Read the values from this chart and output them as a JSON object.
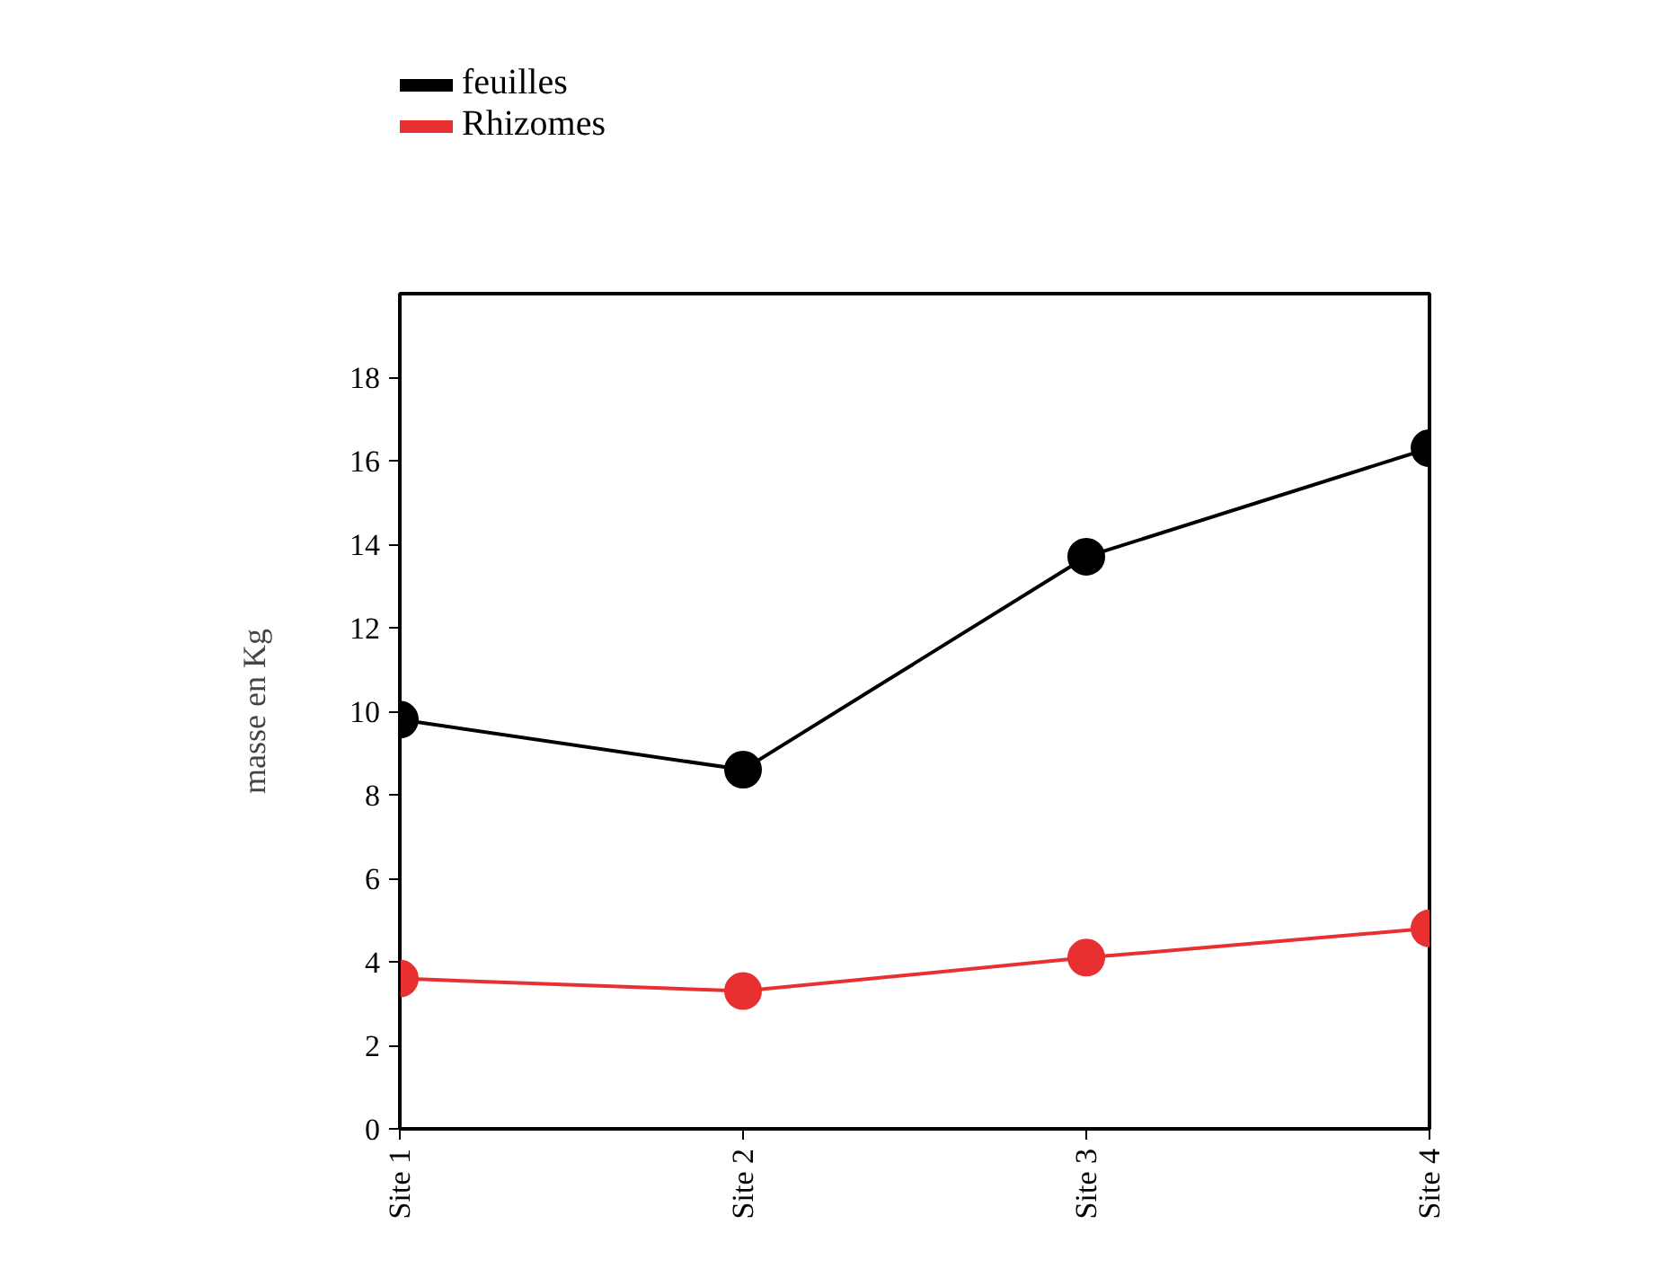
{
  "chart_data": {
    "type": "line",
    "ylabel": "masse en Kg",
    "categories": [
      "Site 1",
      "Site 2",
      "Site 3",
      "Site 4"
    ],
    "series": [
      {
        "name": "feuilles",
        "color": "#000000",
        "values": [
          9.8,
          8.6,
          13.7,
          16.3
        ]
      },
      {
        "name": "Rhizomes",
        "color": "#e83030",
        "values": [
          3.6,
          3.3,
          4.1,
          4.8
        ]
      }
    ],
    "ylim": [
      0,
      20
    ],
    "yticks": [
      0,
      2,
      4,
      6,
      8,
      10,
      12,
      14,
      16,
      18
    ],
    "grid": false,
    "legend": "top left",
    "marker": "circle",
    "line_style": "solid"
  }
}
